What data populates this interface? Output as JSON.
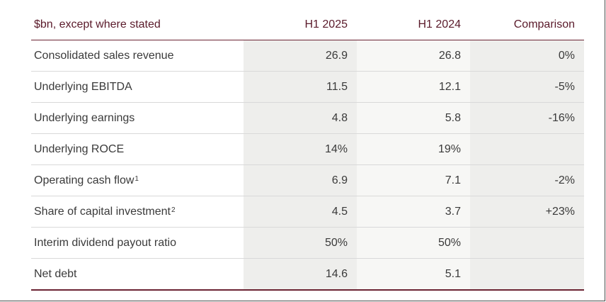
{
  "header": {
    "label": "$bn, except where stated",
    "col1": "H1 2025",
    "col2": "H1 2024",
    "col3": "Comparison"
  },
  "rows": [
    {
      "label": "Consolidated sales revenue",
      "sup": "",
      "h1_2025": "26.9",
      "h1_2024": "26.8",
      "comparison": "0%"
    },
    {
      "label": "Underlying EBITDA",
      "sup": "",
      "h1_2025": "11.5",
      "h1_2024": "12.1",
      "comparison": "-5%"
    },
    {
      "label": "Underlying earnings",
      "sup": "",
      "h1_2025": "4.8",
      "h1_2024": "5.8",
      "comparison": "-16%"
    },
    {
      "label": "Underlying ROCE",
      "sup": "",
      "h1_2025": "14%",
      "h1_2024": "19%",
      "comparison": ""
    },
    {
      "label": "Operating cash flow",
      "sup": "1",
      "h1_2025": "6.9",
      "h1_2024": "7.1",
      "comparison": "-2%"
    },
    {
      "label": "Share of capital investment",
      "sup": "2",
      "h1_2025": "4.5",
      "h1_2024": "3.7",
      "comparison": "+23%"
    },
    {
      "label": "Interim dividend payout ratio",
      "sup": "",
      "h1_2025": "50%",
      "h1_2024": "50%",
      "comparison": ""
    },
    {
      "label": "Net debt",
      "sup": "",
      "h1_2025": "14.6",
      "h1_2024": "5.1",
      "comparison": ""
    }
  ]
}
